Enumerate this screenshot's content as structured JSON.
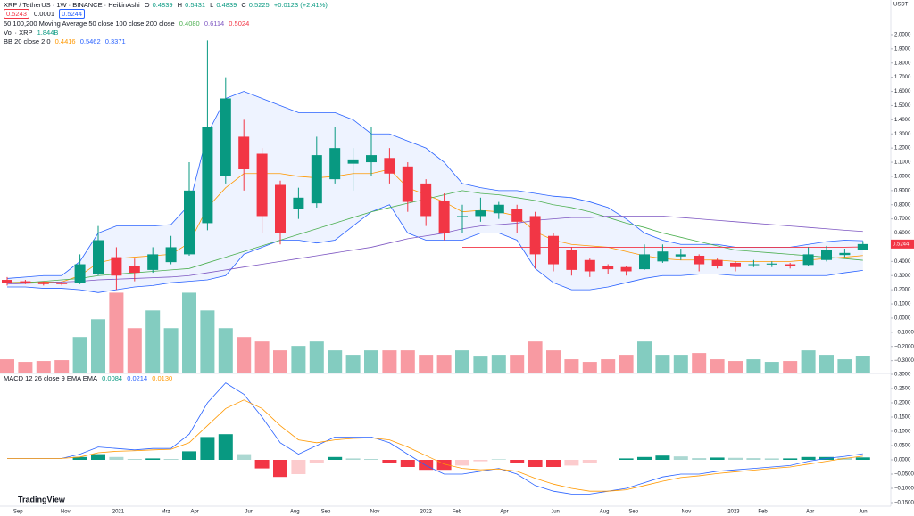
{
  "header": {
    "title": "XRP / TetherUS · 1W · BINANCE · HeikinAshi",
    "ohlc_labels": [
      "O",
      "H",
      "L",
      "C"
    ],
    "change": "+0.0123 (+2.41%)",
    "quote": [
      "0.5243",
      "0.0001",
      "0.5244"
    ],
    "ma_legend": "50,100,200 Moving Average 50 close 100 close 200 close",
    "ma_values": [
      "0.4080",
      "0.6114",
      "0.5024"
    ],
    "vol_legend": "Vol · XRP",
    "vol_value": "1.844B",
    "bb_legend": "BB 20 close 2 0",
    "bb_values": [
      "0.4416",
      "0.5462",
      "0.3371"
    ],
    "macd_legend": "MACD 12 26 close 9 EMA EMA",
    "macd_values": [
      "0.0084",
      "0.0214",
      "0.0130"
    ],
    "currency": "USDT",
    "brand": "TradingView"
  },
  "chart_data": [
    {
      "type": "candlestick",
      "up_color": "#089981",
      "down_color": "#f23645",
      "open": [
        0.27,
        0.26,
        0.255,
        0.25,
        0.245,
        0.31,
        0.43,
        0.365,
        0.34,
        0.395,
        0.45,
        0.67,
        1.0,
        1.28,
        1.16,
        0.94,
        0.77,
        0.81,
        0.98,
        1.09,
        1.1,
        1.13,
        1.07,
        0.95,
        0.83,
        0.72,
        0.72,
        0.74,
        0.77,
        0.72,
        0.58,
        0.48,
        0.41,
        0.37,
        0.36,
        0.345,
        0.4,
        0.435,
        0.44,
        0.41,
        0.39,
        0.375,
        0.378,
        0.38,
        0.375,
        0.41,
        0.445,
        0.4839
      ],
      "high": [
        0.29,
        0.27,
        0.26,
        0.26,
        0.45,
        0.65,
        0.5,
        0.42,
        0.5,
        0.58,
        1.1,
        1.96,
        1.7,
        1.4,
        1.2,
        0.97,
        0.92,
        1.28,
        1.35,
        1.2,
        1.35,
        1.2,
        1.1,
        0.98,
        0.88,
        0.8,
        0.85,
        0.82,
        0.8,
        0.75,
        0.6,
        0.5,
        0.42,
        0.38,
        0.37,
        0.52,
        0.52,
        0.49,
        0.45,
        0.42,
        0.4,
        0.41,
        0.4,
        0.39,
        0.5,
        0.51,
        0.49,
        0.5431
      ],
      "low": [
        0.23,
        0.24,
        0.23,
        0.23,
        0.24,
        0.3,
        0.2,
        0.26,
        0.32,
        0.38,
        0.44,
        0.62,
        0.95,
        0.9,
        0.6,
        0.52,
        0.7,
        0.78,
        0.95,
        0.9,
        1.0,
        0.95,
        0.75,
        0.65,
        0.55,
        0.6,
        0.68,
        0.7,
        0.6,
        0.35,
        0.33,
        0.3,
        0.29,
        0.31,
        0.3,
        0.34,
        0.39,
        0.41,
        0.33,
        0.35,
        0.33,
        0.36,
        0.36,
        0.35,
        0.37,
        0.4,
        0.43,
        0.4839
      ],
      "close": [
        0.25,
        0.25,
        0.24,
        0.24,
        0.38,
        0.55,
        0.3,
        0.32,
        0.45,
        0.5,
        0.9,
        1.35,
        1.55,
        1.05,
        0.72,
        0.6,
        0.85,
        1.15,
        1.2,
        1.12,
        1.15,
        1.02,
        0.82,
        0.72,
        0.6,
        0.72,
        0.76,
        0.8,
        0.68,
        0.45,
        0.38,
        0.34,
        0.33,
        0.345,
        0.33,
        0.45,
        0.47,
        0.45,
        0.38,
        0.37,
        0.36,
        0.38,
        0.385,
        0.37,
        0.45,
        0.48,
        0.46,
        0.5225
      ],
      "volume": [
        1.5,
        1.2,
        1.3,
        1.4,
        4,
        6,
        9,
        5,
        7,
        5,
        9,
        7,
        5,
        4,
        3.5,
        2.5,
        3,
        3.5,
        2.5,
        2,
        2.5,
        2.5,
        2.5,
        2,
        2,
        2.5,
        1.8,
        2,
        2,
        3.5,
        2.5,
        1.5,
        1.2,
        1.5,
        2,
        3.5,
        2,
        2,
        2.2,
        1.5,
        1.3,
        1.5,
        1.2,
        1.3,
        2.5,
        2,
        1.5,
        1.844
      ],
      "volume_ylim": [
        0,
        42
      ],
      "band_color": "#2962ff",
      "bb_upper": [
        0.28,
        0.29,
        0.3,
        0.3,
        0.4,
        0.6,
        0.65,
        0.65,
        0.65,
        0.66,
        0.8,
        1.3,
        1.55,
        1.6,
        1.55,
        1.5,
        1.45,
        1.45,
        1.45,
        1.4,
        1.3,
        1.3,
        1.25,
        1.2,
        1.1,
        0.95,
        0.92,
        0.9,
        0.9,
        0.88,
        0.86,
        0.85,
        0.82,
        0.78,
        0.7,
        0.6,
        0.55,
        0.52,
        0.52,
        0.52,
        0.5,
        0.5,
        0.5,
        0.5,
        0.52,
        0.54,
        0.55,
        0.5462
      ],
      "bb_lower": [
        0.22,
        0.22,
        0.21,
        0.21,
        0.2,
        0.18,
        0.2,
        0.22,
        0.23,
        0.25,
        0.26,
        0.27,
        0.3,
        0.45,
        0.5,
        0.55,
        0.55,
        0.53,
        0.55,
        0.65,
        0.75,
        0.8,
        0.6,
        0.55,
        0.55,
        0.55,
        0.6,
        0.6,
        0.55,
        0.35,
        0.25,
        0.2,
        0.2,
        0.22,
        0.25,
        0.28,
        0.3,
        0.3,
        0.31,
        0.31,
        0.3,
        0.3,
        0.3,
        0.3,
        0.3,
        0.3,
        0.32,
        0.3371
      ],
      "lines": [
        {
          "color": "#ff9800",
          "values": [
            0.25,
            0.255,
            0.255,
            0.255,
            0.3,
            0.39,
            0.42,
            0.43,
            0.44,
            0.45,
            0.53,
            0.78,
            0.92,
            1.02,
            1.02,
            1.02,
            1.0,
            0.99,
            1.0,
            1.02,
            1.02,
            1.05,
            0.92,
            0.87,
            0.82,
            0.75,
            0.76,
            0.75,
            0.72,
            0.61,
            0.55,
            0.52,
            0.51,
            0.5,
            0.47,
            0.44,
            0.42,
            0.41,
            0.41,
            0.41,
            0.4,
            0.4,
            0.4,
            0.4,
            0.41,
            0.42,
            0.43,
            0.4416
          ]
        },
        {
          "color": "#4caf50",
          "values": [
            0.25,
            0.25,
            0.26,
            0.27,
            0.28,
            0.3,
            0.31,
            0.32,
            0.33,
            0.34,
            0.35,
            0.39,
            0.43,
            0.47,
            0.51,
            0.55,
            0.59,
            0.63,
            0.67,
            0.71,
            0.75,
            0.78,
            0.81,
            0.84,
            0.87,
            0.9,
            0.88,
            0.87,
            0.85,
            0.83,
            0.8,
            0.78,
            0.75,
            0.71,
            0.67,
            0.64,
            0.6,
            0.57,
            0.54,
            0.51,
            0.48,
            0.47,
            0.46,
            0.45,
            0.44,
            0.43,
            0.42,
            0.408
          ]
        },
        {
          "color": "#7e57c2",
          "values": [
            0.24,
            0.245,
            0.25,
            0.255,
            0.26,
            0.27,
            0.275,
            0.28,
            0.285,
            0.29,
            0.3,
            0.32,
            0.34,
            0.36,
            0.38,
            0.4,
            0.42,
            0.44,
            0.46,
            0.48,
            0.5,
            0.53,
            0.56,
            0.58,
            0.6,
            0.63,
            0.65,
            0.66,
            0.67,
            0.69,
            0.7,
            0.71,
            0.71,
            0.72,
            0.72,
            0.72,
            0.72,
            0.71,
            0.7,
            0.69,
            0.68,
            0.67,
            0.66,
            0.65,
            0.64,
            0.63,
            0.62,
            0.6114
          ]
        },
        {
          "color": "#f23645",
          "values": [
            null,
            null,
            null,
            null,
            null,
            null,
            null,
            null,
            null,
            null,
            null,
            null,
            null,
            null,
            null,
            null,
            null,
            null,
            null,
            null,
            null,
            null,
            null,
            null,
            null,
            0.5,
            0.5,
            0.5,
            0.5,
            0.5,
            0.5,
            0.5,
            0.5,
            0.5,
            0.5,
            0.5,
            0.5,
            0.5,
            0.5,
            0.5,
            0.5,
            0.5,
            0.5,
            0.5,
            0.5,
            0.5,
            0.5,
            0.5024
          ]
        }
      ],
      "ylim": [
        -0.384,
        2.245
      ],
      "yticks": [
        {
          "value": 2.0,
          "label": "2.0000"
        },
        {
          "value": 1.9,
          "label": "1.9000"
        },
        {
          "value": 1.8,
          "label": "1.8000"
        },
        {
          "value": 1.7,
          "label": "1.7000"
        },
        {
          "value": 1.6,
          "label": "1.6000"
        },
        {
          "value": 1.5,
          "label": "1.5000"
        },
        {
          "value": 1.4,
          "label": "1.4000"
        },
        {
          "value": 1.3,
          "label": "1.3000"
        },
        {
          "value": 1.2,
          "label": "1.2000"
        },
        {
          "value": 1.1,
          "label": "1.1000"
        },
        {
          "value": 1.0,
          "label": "1.0000"
        },
        {
          "value": 0.9,
          "label": "0.9000"
        },
        {
          "value": 0.8,
          "label": "0.8000"
        },
        {
          "value": 0.7,
          "label": "0.7000"
        },
        {
          "value": 0.6,
          "label": "0.6000"
        },
        {
          "value": 0.4,
          "label": "0.4000"
        },
        {
          "value": 0.3,
          "label": "0.3000"
        },
        {
          "value": 0.2,
          "label": "0.2000"
        },
        {
          "value": 0.1,
          "label": "0.1000"
        },
        {
          "value": 0,
          "label": "0.0000"
        },
        {
          "value": -0.1,
          "label": "−0.1000"
        },
        {
          "value": -0.2,
          "label": "−0.2000"
        },
        {
          "value": -0.3,
          "label": "−0.3000"
        }
      ],
      "xticks": [
        {
          "value": 0.6,
          "label": "Sep"
        },
        {
          "value": 3.2,
          "label": "Nov"
        },
        {
          "value": 6.1,
          "label": "2021"
        },
        {
          "value": 8.7,
          "label": "Mrz"
        },
        {
          "value": 10.3,
          "label": "Apr"
        },
        {
          "value": 13.3,
          "label": "Jun"
        },
        {
          "value": 15.8,
          "label": "Aug"
        },
        {
          "value": 17.5,
          "label": "Sep"
        },
        {
          "value": 20.2,
          "label": "Nov"
        },
        {
          "value": 23.0,
          "label": "2022"
        },
        {
          "value": 24.7,
          "label": "Feb"
        },
        {
          "value": 27.3,
          "label": "Apr"
        },
        {
          "value": 30.1,
          "label": "Jun"
        },
        {
          "value": 32.8,
          "label": "Aug"
        },
        {
          "value": 34.4,
          "label": "Sep"
        },
        {
          "value": 37.3,
          "label": "Nov"
        },
        {
          "value": 39.9,
          "label": "2023"
        },
        {
          "value": 41.5,
          "label": "Feb"
        },
        {
          "value": 44.1,
          "label": "Apr"
        },
        {
          "value": 47.0,
          "label": "Jun"
        }
      ]
    },
    {
      "type": "macd",
      "macd_color": "#2962ff",
      "signal_color": "#ff9800",
      "histogram": [
        0,
        0,
        0,
        0,
        0.01,
        0.02,
        0.01,
        0.003,
        0.005,
        0.003,
        0.03,
        0.08,
        0.09,
        0.02,
        -0.03,
        -0.06,
        -0.05,
        -0.01,
        0.01,
        0.005,
        0.003,
        -0.01,
        -0.025,
        -0.035,
        -0.035,
        -0.02,
        -0.005,
        0.002,
        -0.01,
        -0.025,
        -0.025,
        -0.02,
        -0.01,
        0,
        0.005,
        0.01,
        0.015,
        0.012,
        0.006,
        0.008,
        0.007,
        0.006,
        0.005,
        0.005,
        0.01,
        0.01,
        0.007,
        0.0084
      ],
      "macd": [
        0.005,
        0.005,
        0.005,
        0.005,
        0.02,
        0.045,
        0.04,
        0.035,
        0.04,
        0.04,
        0.09,
        0.2,
        0.27,
        0.23,
        0.15,
        0.06,
        0.02,
        0.05,
        0.08,
        0.08,
        0.08,
        0.06,
        0.02,
        -0.02,
        -0.05,
        -0.05,
        -0.04,
        -0.03,
        -0.05,
        -0.09,
        -0.11,
        -0.12,
        -0.12,
        -0.11,
        -0.1,
        -0.08,
        -0.06,
        -0.05,
        -0.05,
        -0.04,
        -0.035,
        -0.03,
        -0.025,
        -0.02,
        -0.005,
        0.005,
        0.012,
        0.0214
      ],
      "signal": [
        0.005,
        0.005,
        0.005,
        0.005,
        0.01,
        0.025,
        0.03,
        0.032,
        0.035,
        0.037,
        0.06,
        0.12,
        0.18,
        0.21,
        0.18,
        0.12,
        0.07,
        0.06,
        0.07,
        0.075,
        0.077,
        0.07,
        0.045,
        0.015,
        -0.015,
        -0.03,
        -0.035,
        -0.032,
        -0.04,
        -0.065,
        -0.085,
        -0.1,
        -0.11,
        -0.11,
        -0.105,
        -0.09,
        -0.075,
        -0.062,
        -0.056,
        -0.048,
        -0.042,
        -0.036,
        -0.03,
        -0.025,
        -0.015,
        -0.005,
        0.005,
        0.013
      ],
      "ylim": [
        -0.1625,
        0.3
      ],
      "yticks": [
        {
          "value": 0.3,
          "label": "0.3000"
        },
        {
          "value": 0.25,
          "label": "0.2500"
        },
        {
          "value": 0.2,
          "label": "0.2000"
        },
        {
          "value": 0.15,
          "label": "0.1500"
        },
        {
          "value": 0.1,
          "label": "0.1000"
        },
        {
          "value": 0.05,
          "label": "0.0500"
        },
        {
          "value": 0,
          "label": "0.0000"
        },
        {
          "value": -0.05,
          "label": "−0.0500"
        },
        {
          "value": -0.1,
          "label": "−0.1000"
        },
        {
          "value": -0.15,
          "label": "−0.1500"
        }
      ]
    }
  ]
}
